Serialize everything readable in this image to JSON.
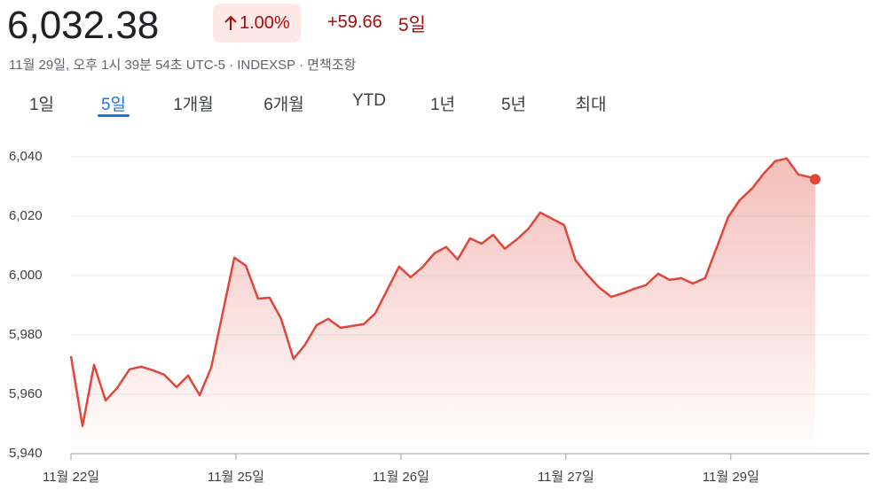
{
  "header": {
    "price": "6,032.38",
    "change_pct": "1.00%",
    "change_abs": "+59.66",
    "period": "5일",
    "timestamp": "11월 29일, 오후 1시 39분 54초 UTC-5 · INDEXSP · 면책조항"
  },
  "tabs": {
    "items": [
      "1일",
      "5일",
      "1개월",
      "6개월",
      "YTD",
      "1년",
      "5년",
      "최대"
    ],
    "selected": 1
  },
  "chart_data": {
    "type": "line",
    "color": "#e0463a",
    "grid": true,
    "x": [
      0,
      0.07,
      0.14,
      0.21,
      0.28,
      0.355,
      0.425,
      0.495,
      0.565,
      0.64,
      0.71,
      0.78,
      0.85,
      0.99,
      1.06,
      1.134,
      1.204,
      1.274,
      1.349,
      1.419,
      1.489,
      1.559,
      1.634,
      1.774,
      1.844,
      1.989,
      2.059,
      2.129,
      2.204,
      2.274,
      2.344,
      2.419,
      2.489,
      2.559,
      2.629,
      2.704,
      2.774,
      2.844,
      2.989,
      3.059,
      3.129,
      3.199,
      3.274,
      3.344,
      3.414,
      3.484,
      3.559,
      3.629,
      3.699,
      3.769,
      3.844,
      3.984,
      4.054,
      4.129,
      4.199,
      4.269,
      4.339,
      4.409,
      4.478,
      4.511
    ],
    "values": [
      5972.8,
      5949.3,
      5969.9,
      5957.9,
      5962.1,
      5968.4,
      5969.3,
      5968.1,
      5966.6,
      5962.4,
      5966.3,
      5959.7,
      5969,
      6006,
      6003.3,
      5992.2,
      5992.5,
      5985.4,
      5971.9,
      5976.7,
      5983.3,
      5985.4,
      5982.4,
      5983.6,
      5987.2,
      6003,
      5999.4,
      6002.7,
      6007.5,
      6009.6,
      6005.4,
      6012.5,
      6010.7,
      6013.7,
      6009,
      6012.2,
      6015.8,
      6021.2,
      6017,
      6005.1,
      6000.3,
      5996.1,
      5992.8,
      5994,
      5995.5,
      5996.7,
      6000.6,
      5998.5,
      5999.1,
      5997.3,
      5999.1,
      6019.7,
      6025.4,
      6029.3,
      6034.3,
      6038.5,
      6039.4,
      6034,
      6033.1,
      6032.38
    ],
    "xlim": [
      0,
      4.84
    ],
    "xticks": [
      {
        "value": 0,
        "label": "11월 22일"
      },
      {
        "value": 1,
        "label": "11월 25일"
      },
      {
        "value": 2,
        "label": "11월 26일"
      },
      {
        "value": 3,
        "label": "11월 27일"
      },
      {
        "value": 4,
        "label": "11월 29일"
      }
    ],
    "ylim": [
      5940,
      6048
    ],
    "yticks": [
      {
        "value": 5940,
        "label": "5,940"
      },
      {
        "value": 5960,
        "label": "5,960"
      },
      {
        "value": 5980,
        "label": "5,980"
      },
      {
        "value": 6000,
        "label": "6,000"
      },
      {
        "value": 6020,
        "label": "6,020"
      },
      {
        "value": 6040,
        "label": "6,040"
      }
    ]
  }
}
